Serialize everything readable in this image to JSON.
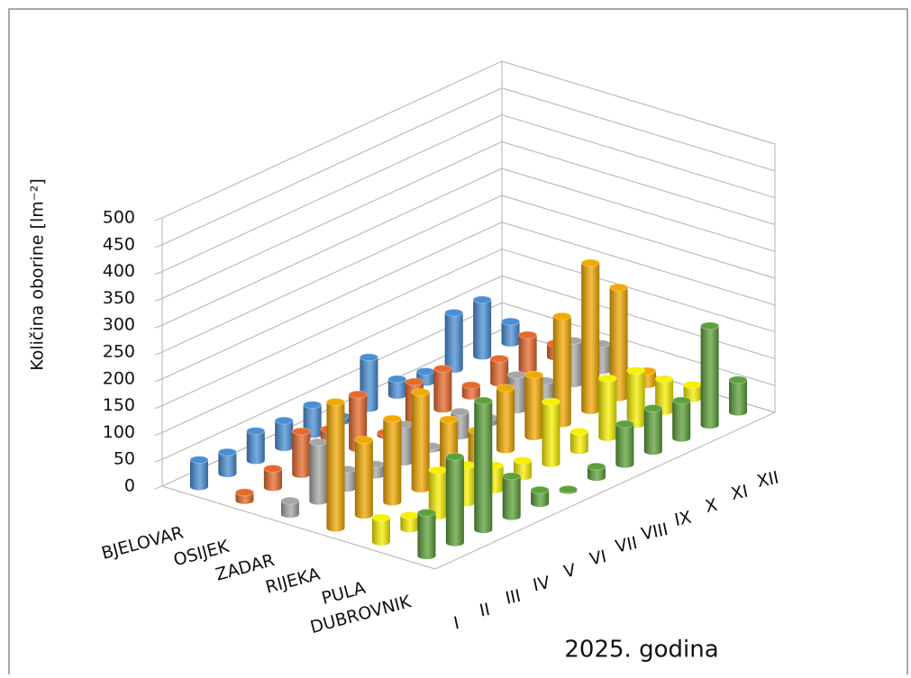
{
  "chart_data": {
    "type": "bar3d",
    "y_label": "Količina oborine  [lm⁻²]",
    "x_label": "2025. godina",
    "categories": [
      "I",
      "II",
      "III",
      "IV",
      "V",
      "VI",
      "VII",
      "VIII",
      "IX",
      "X",
      "XI",
      "XII"
    ],
    "ylim": [
      0,
      500
    ],
    "yticks": [
      0,
      50,
      100,
      150,
      200,
      250,
      300,
      350,
      400,
      450,
      500
    ],
    "grid": true,
    "series": [
      {
        "name": "BJELOVAR",
        "color": "#4a8fd6",
        "values": [
          50,
          40,
          55,
          50,
          55,
          10,
          95,
          30,
          20,
          105,
          105,
          40
        ]
      },
      {
        "name": "OSIJEK",
        "color": "#e8692c",
        "values": [
          15,
          35,
          80,
          60,
          100,
          5,
          75,
          75,
          20,
          45,
          65,
          25
        ]
      },
      {
        "name": "ZADAR",
        "color": "#a6a6a6",
        "values": [
          25,
          110,
          35,
          20,
          70,
          5,
          45,
          10,
          65,
          30,
          80,
          50
        ]
      },
      {
        "name": "RIJEKA",
        "color": "#f2a900",
        "values": [
          235,
          140,
          155,
          180,
          105,
          60,
          115,
          115,
          200,
          275,
          205,
          25
        ]
      },
      {
        "name": "PULA",
        "color": "#f7f000",
        "values": [
          45,
          25,
          85,
          70,
          45,
          30,
          115,
          35,
          110,
          100,
          60,
          25
        ]
      },
      {
        "name": "DUBROVNIK",
        "color": "#5da13a",
        "values": [
          80,
          160,
          240,
          75,
          25,
          2,
          20,
          75,
          80,
          70,
          185,
          60
        ]
      }
    ]
  }
}
